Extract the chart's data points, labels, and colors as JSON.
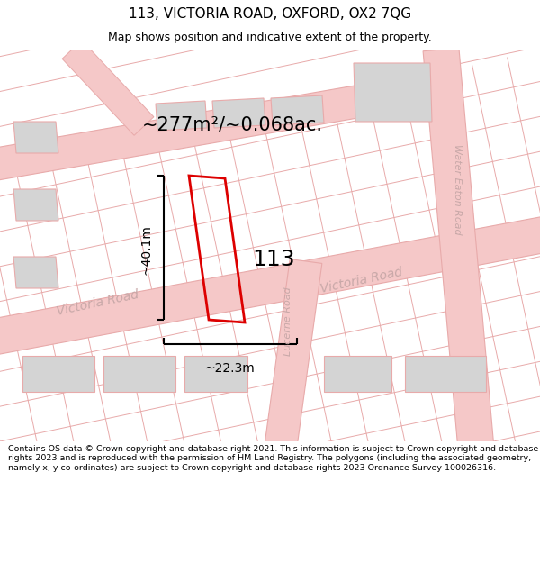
{
  "title": "113, VICTORIA ROAD, OXFORD, OX2 7QG",
  "subtitle": "Map shows position and indicative extent of the property.",
  "area_text": "~277m²/~0.068ac.",
  "label_113": "113",
  "dim_width": "~22.3m",
  "dim_height": "~40.1m",
  "road_label_victoria1": "Victoria Road",
  "road_label_victoria2": "Victoria Road",
  "road_label_lucerne": "Lucerne Road",
  "road_label_water_eaton": "Water Eaton Road",
  "footer_text": "Contains OS data © Crown copyright and database right 2021. This information is subject to Crown copyright and database rights 2023 and is reproduced with the permission of HM Land Registry. The polygons (including the associated geometry, namely x, y co-ordinates) are subject to Crown copyright and database rights 2023 Ordnance Survey 100026316.",
  "bg_color": "#ffffff",
  "map_bg": "#ffffff",
  "road_fill": "#f5c8c8",
  "road_line": "#e8aaaa",
  "building_fill": "#d4d4d4",
  "building_edge": "#e8aaaa",
  "property_color": "#dd0000",
  "dim_color": "#000000",
  "text_color": "#000000",
  "road_text_color": "#c8a8a8",
  "title_fontsize": 11,
  "subtitle_fontsize": 9,
  "area_fontsize": 15,
  "label_fontsize": 18,
  "dim_fontsize": 10,
  "road_fontsize": 10,
  "footer_fontsize": 6.8
}
